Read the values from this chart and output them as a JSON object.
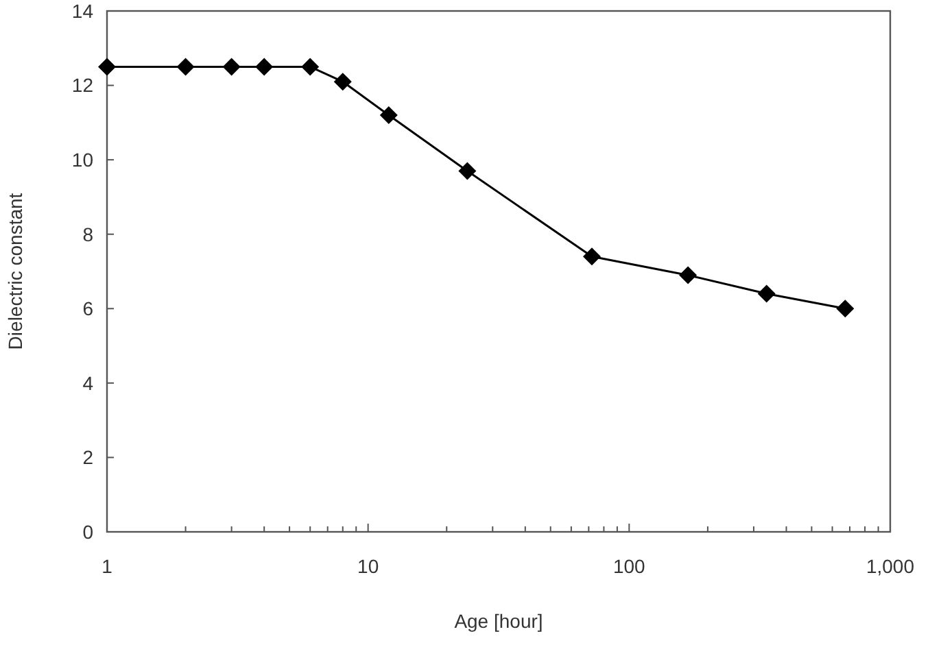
{
  "chart_data": {
    "type": "line",
    "xlabel": "Age [hour]",
    "ylabel": "Dielectric constant",
    "log": "x",
    "xlim": [
      1,
      1000
    ],
    "ylim": [
      0,
      14
    ],
    "yticks": [
      0,
      2,
      4,
      6,
      8,
      10,
      12,
      14
    ],
    "xticks": [
      1,
      {
        "value": 2,
        "label": null
      },
      {
        "value": 3,
        "label": null
      },
      {
        "value": 4,
        "label": null
      },
      {
        "value": 5,
        "label": null
      },
      {
        "value": 6,
        "label": null
      },
      {
        "value": 7,
        "label": null
      },
      {
        "value": 8,
        "label": null
      },
      {
        "value": 9,
        "label": null
      },
      10,
      {
        "value": 20,
        "label": null
      },
      {
        "value": 30,
        "label": null
      },
      {
        "value": 40,
        "label": null
      },
      {
        "value": 50,
        "label": null
      },
      {
        "value": 60,
        "label": null
      },
      {
        "value": 70,
        "label": null
      },
      {
        "value": 80,
        "label": null
      },
      {
        "value": 90,
        "label": null
      },
      100,
      {
        "value": 200,
        "label": null
      },
      {
        "value": 300,
        "label": null
      },
      {
        "value": 400,
        "label": null
      },
      {
        "value": 500,
        "label": null
      },
      {
        "value": 600,
        "label": null
      },
      {
        "value": 700,
        "label": null
      },
      {
        "value": 800,
        "label": null
      },
      {
        "value": 900,
        "label": null
      },
      {
        "value": 1000,
        "label": "1,000"
      }
    ],
    "x": [
      1,
      2,
      3,
      4,
      6,
      8,
      12,
      24,
      72,
      168,
      336,
      672
    ],
    "series": [
      {
        "color": "#000000",
        "values": [
          12.5,
          12.5,
          12.5,
          12.5,
          12.5,
          12.1,
          11.2,
          9.7,
          7.4,
          6.9,
          6.4,
          6.0
        ]
      }
    ],
    "marker": "diamond",
    "line_style": "solid",
    "grid": false
  }
}
